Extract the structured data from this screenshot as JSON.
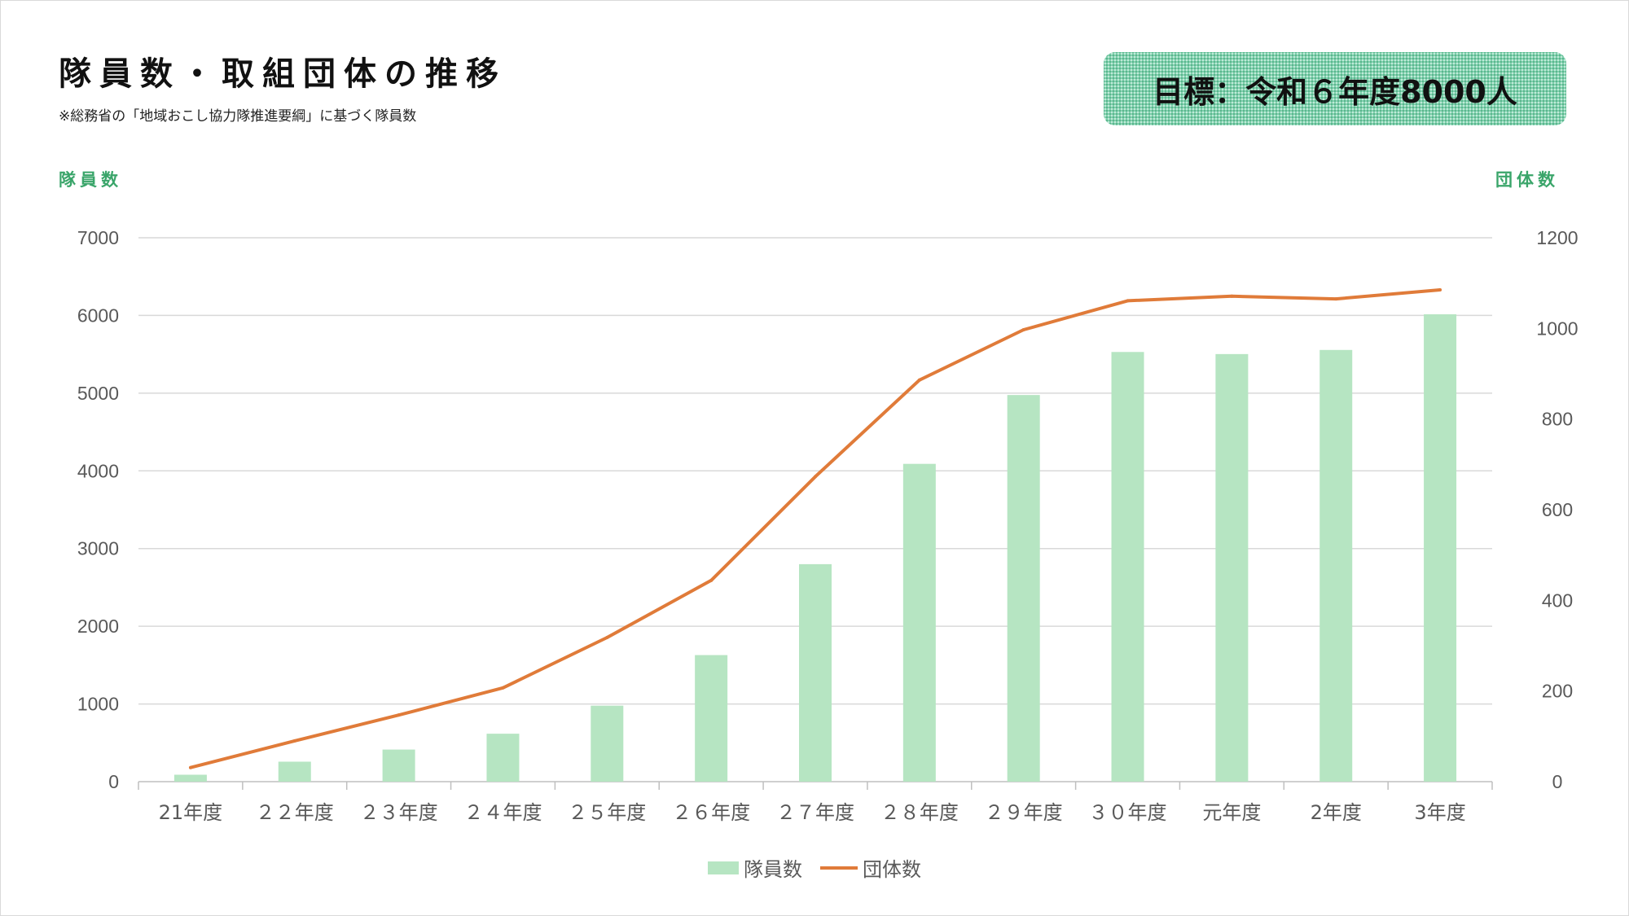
{
  "title": "隊員数・取組団体の推移",
  "subtitle": "※総務省の「地域おこし協力隊推進要綱」に基づく隊員数",
  "target_label": "目標：令和６年度8000人",
  "colors": {
    "bar": "#b6e5c2",
    "line": "#e07b39",
    "accent": "#3aa56a",
    "target_bg": "#7fd1ae"
  },
  "chart_data": {
    "type": "bar",
    "y_left_label": "隊員数",
    "y_right_label": "団体数",
    "categories": [
      "21年度",
      "２２年度",
      "２３年度",
      "２４年度",
      "２５年度",
      "２６年度",
      "２７年度",
      "２８年度",
      "２９年度",
      "３０年度",
      "元年度",
      "2年度",
      "3年度"
    ],
    "series": [
      {
        "name": "隊員数",
        "type": "bar",
        "axis": "left",
        "values": [
          89,
          257,
          413,
          617,
          978,
          1629,
          2799,
          4090,
          4976,
          5530,
          5503,
          5556,
          6015
        ]
      },
      {
        "name": "団体数",
        "type": "line",
        "axis": "right",
        "values": [
          31,
          90,
          147,
          207,
          318,
          444,
          673,
          886,
          997,
          1061,
          1071,
          1065,
          1085
        ]
      }
    ],
    "ylim_left": [
      0,
      7000
    ],
    "yticks_left": [
      "0",
      "1000",
      "2000",
      "3000",
      "4000",
      "5000",
      "6000",
      "7000"
    ],
    "ylim_right": [
      0,
      1200
    ],
    "yticks_right": [
      "0",
      "200",
      "400",
      "600",
      "800",
      "1000",
      "1200"
    ],
    "grid": true,
    "legend_position": "bottom"
  }
}
